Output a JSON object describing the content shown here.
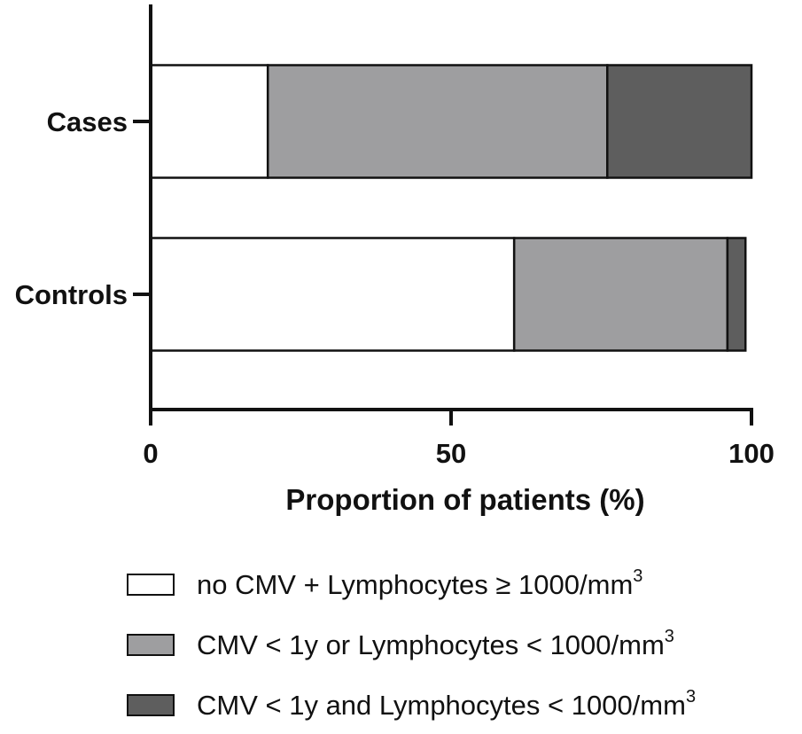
{
  "chart_data": {
    "type": "bar",
    "orientation": "horizontal",
    "stacked": true,
    "categories": [
      "Cases",
      "Controls"
    ],
    "series": [
      {
        "name": "no CMV + Lymphocytes ≥ 1000/mm3",
        "values": [
          19.5,
          60.5
        ],
        "color": "#ffffff"
      },
      {
        "name": "CMV < 1y or Lymphocytes < 1000/mm3",
        "values": [
          56.5,
          35.5
        ],
        "color": "#9e9ea0"
      },
      {
        "name": "CMV < 1y and Lymphocytes < 1000/mm3",
        "values": [
          24.0,
          3.0
        ],
        "color": "#5e5e5e"
      }
    ],
    "xlabel": "Proportion of patients (%)",
    "ylabel": "",
    "xlim": [
      0,
      100
    ],
    "xticks": [
      "0",
      "50",
      "100"
    ],
    "grid": false,
    "legend_position": "bottom"
  },
  "legend": [
    {
      "text": "no CMV + Lymphocytes ≥ 1000/mm",
      "sup": "3",
      "color": "#ffffff"
    },
    {
      "text": "CMV < 1y or Lymphocytes < 1000/mm",
      "sup": "3",
      "color": "#9e9ea0"
    },
    {
      "text": "CMV < 1y and Lymphocytes < 1000/mm",
      "sup": "3",
      "color": "#5e5e5e"
    }
  ]
}
